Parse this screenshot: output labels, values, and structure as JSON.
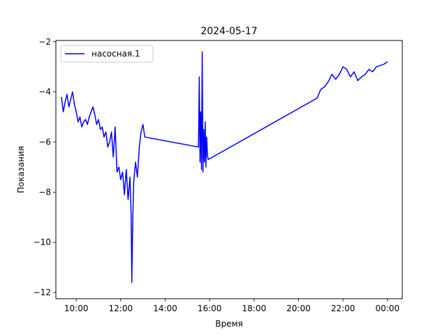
{
  "chart_data": {
    "type": "line",
    "title": "2024-05-17",
    "xlabel": "Время",
    "ylabel": "Показания",
    "xlim": [
      "09:05",
      "00:40"
    ],
    "ylim": [
      -12.25,
      -1.95
    ],
    "xticks": [
      {
        "label": "10:00",
        "hour": 10
      },
      {
        "label": "12:00",
        "hour": 12
      },
      {
        "label": "14:00",
        "hour": 14
      },
      {
        "label": "16:00",
        "hour": 16
      },
      {
        "label": "18:00",
        "hour": 18
      },
      {
        "label": "20:00",
        "hour": 20
      },
      {
        "label": "22:00",
        "hour": 22
      },
      {
        "label": "00:00",
        "hour": 24
      }
    ],
    "yticks": [
      -12,
      -10,
      -8,
      -6,
      -4,
      -2
    ],
    "grid": false,
    "legend": "upper left",
    "series": [
      {
        "name": "насосная.1",
        "color": "#0000ff",
        "points": [
          [
            "09:20",
            -4.2
          ],
          [
            "09:25",
            -4.8
          ],
          [
            "09:30",
            -4.4
          ],
          [
            "09:35",
            -4.1
          ],
          [
            "09:40",
            -4.6
          ],
          [
            "09:45",
            -4.3
          ],
          [
            "09:50",
            -4.0
          ],
          [
            "09:55",
            -4.5
          ],
          [
            "10:00",
            -4.8
          ],
          [
            "10:05",
            -5.2
          ],
          [
            "10:10",
            -5.0
          ],
          [
            "10:15",
            -5.4
          ],
          [
            "10:20",
            -5.2
          ],
          [
            "10:25",
            -5.1
          ],
          [
            "10:30",
            -5.3
          ],
          [
            "10:35",
            -5.0
          ],
          [
            "10:40",
            -4.8
          ],
          [
            "10:45",
            -4.6
          ],
          [
            "10:50",
            -4.9
          ],
          [
            "10:55",
            -5.3
          ],
          [
            "11:00",
            -5.1
          ],
          [
            "11:05",
            -5.5
          ],
          [
            "11:10",
            -5.4
          ],
          [
            "11:15",
            -5.8
          ],
          [
            "11:20",
            -5.6
          ],
          [
            "11:25",
            -6.2
          ],
          [
            "11:30",
            -6.0
          ],
          [
            "11:35",
            -5.6
          ],
          [
            "11:40",
            -6.6
          ],
          [
            "11:45",
            -5.4
          ],
          [
            "11:50",
            -7.2
          ],
          [
            "11:55",
            -7.0
          ],
          [
            "12:00",
            -7.5
          ],
          [
            "12:05",
            -7.2
          ],
          [
            "12:10",
            -8.1
          ],
          [
            "12:15",
            -7.1
          ],
          [
            "12:20",
            -8.3
          ],
          [
            "12:25",
            -7.4
          ],
          [
            "12:28",
            -8.8
          ],
          [
            "12:30",
            -11.6
          ],
          [
            "12:32",
            -9.5
          ],
          [
            "12:35",
            -7.6
          ],
          [
            "12:40",
            -6.8
          ],
          [
            "12:45",
            -7.4
          ],
          [
            "12:50",
            -6.2
          ],
          [
            "12:55",
            -5.6
          ],
          [
            "13:00",
            -5.3
          ],
          [
            "13:05",
            -5.8
          ],
          [
            "15:30",
            -6.2
          ],
          [
            "15:32",
            -3.4
          ],
          [
            "15:34",
            -6.8
          ],
          [
            "15:36",
            -4.8
          ],
          [
            "15:38",
            -7.1
          ],
          [
            "15:40",
            -2.4
          ],
          [
            "15:42",
            -7.2
          ],
          [
            "15:44",
            -5.5
          ],
          [
            "15:46",
            -6.8
          ],
          [
            "15:48",
            -5.2
          ],
          [
            "15:50",
            -7.0
          ],
          [
            "15:52",
            -5.8
          ],
          [
            "15:54",
            -6.5
          ],
          [
            "15:56",
            -6.7
          ],
          [
            "20:50",
            -4.25
          ],
          [
            "21:00",
            -3.9
          ],
          [
            "21:10",
            -3.8
          ],
          [
            "21:20",
            -3.6
          ],
          [
            "21:30",
            -3.3
          ],
          [
            "21:40",
            -3.5
          ],
          [
            "21:50",
            -3.3
          ],
          [
            "22:00",
            -3.0
          ],
          [
            "22:10",
            -3.1
          ],
          [
            "22:20",
            -3.4
          ],
          [
            "22:30",
            -3.2
          ],
          [
            "22:40",
            -3.55
          ],
          [
            "22:50",
            -3.4
          ],
          [
            "23:00",
            -3.3
          ],
          [
            "23:10",
            -3.1
          ],
          [
            "23:20",
            -3.2
          ],
          [
            "23:30",
            -3.0
          ],
          [
            "23:40",
            -2.95
          ],
          [
            "23:50",
            -2.9
          ],
          [
            "24:00",
            -2.8
          ]
        ]
      }
    ]
  }
}
